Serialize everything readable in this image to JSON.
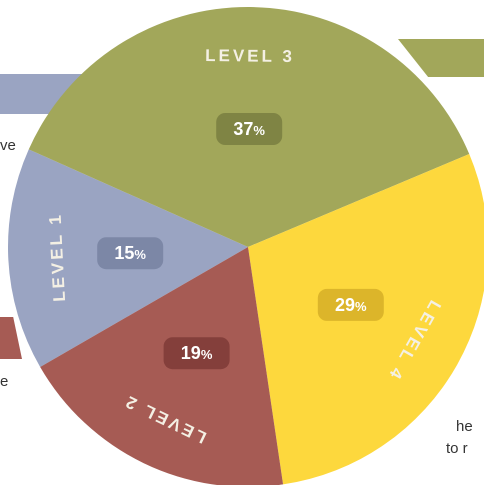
{
  "chart_data": {
    "type": "pie",
    "slices": [
      {
        "label": "LEVEL 1",
        "value": 15,
        "value_label": "15",
        "unit": "%",
        "color": "#9aa4c2",
        "badge_color": "#7c87a6"
      },
      {
        "label": "LEVEL 3",
        "value": 37,
        "value_label": "37",
        "unit": "%",
        "color": "#a2a75a",
        "badge_color": "#7f8444"
      },
      {
        "label": "LEVEL 4",
        "value": 29,
        "value_label": "29",
        "unit": "%",
        "color": "#fdd83d",
        "badge_color": "#dcb52a"
      },
      {
        "label": "LEVEL 2",
        "value": 19,
        "value_label": "19",
        "unit": "%",
        "color": "#a65b54",
        "badge_color": "#843f3b"
      }
    ]
  },
  "background_fragments": {
    "left_top": "ve",
    "left_bottom": "e",
    "right_1": "he",
    "right_2": "to r"
  },
  "colors": {
    "background": "#ffffff",
    "label_text": "#f4f0e4",
    "value_text": "#ffffff",
    "ribbon_blue": "#9aa4c2",
    "ribbon_green": "#a2a75a",
    "ribbon_red": "#a65b54"
  }
}
